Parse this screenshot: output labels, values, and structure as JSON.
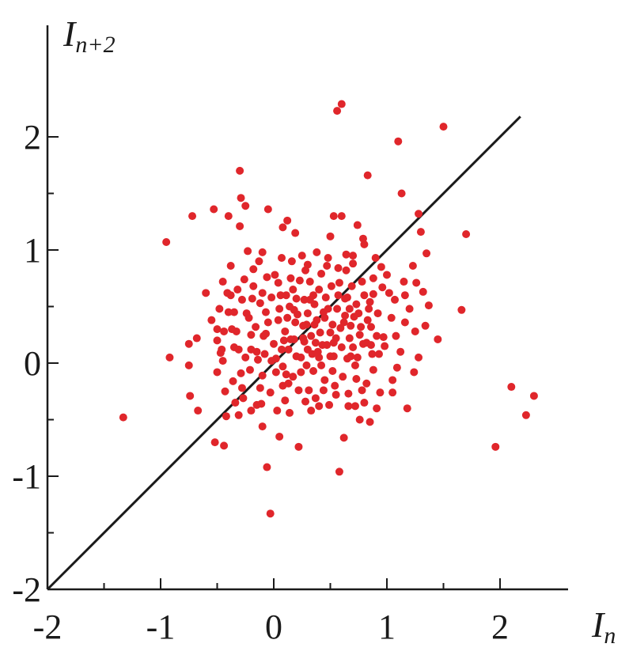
{
  "chart_data": {
    "type": "scatter",
    "title": "",
    "xlabel": {
      "main": "I",
      "sub": "n"
    },
    "ylabel": {
      "main": "I",
      "sub": "n+2"
    },
    "xlim": [
      -2,
      2.3
    ],
    "ylim": [
      -2,
      2.4
    ],
    "xticks": [
      -2,
      -1,
      0,
      1,
      2
    ],
    "yticks": [
      -2,
      -1,
      0,
      1,
      2
    ],
    "xtick_labels": [
      "-2",
      "-1",
      "0",
      "1",
      "2"
    ],
    "ytick_labels": [
      "-2",
      "-1",
      "0",
      "1",
      "2"
    ],
    "grid": false,
    "point_color": "#e0262b",
    "line_color": "#1a1a1a",
    "reference_line": {
      "x": [
        -2,
        2.18
      ],
      "y": [
        -2,
        2.18
      ]
    },
    "points": [
      [
        -1.33,
        -0.48
      ],
      [
        -0.95,
        1.07
      ],
      [
        -0.92,
        0.05
      ],
      [
        -0.72,
        1.3
      ],
      [
        -0.75,
        0.17
      ],
      [
        -0.75,
        -0.02
      ],
      [
        -0.74,
        -0.29
      ],
      [
        -0.68,
        0.22
      ],
      [
        -0.67,
        -0.42
      ],
      [
        -0.6,
        0.62
      ],
      [
        -0.55,
        0.38
      ],
      [
        -0.53,
        1.36
      ],
      [
        -0.5,
        0.2
      ],
      [
        -0.52,
        -0.7
      ],
      [
        -0.44,
        -0.73
      ],
      [
        -0.4,
        1.3
      ],
      [
        -0.45,
        0.02
      ],
      [
        -0.45,
        0.72
      ],
      [
        -0.38,
        0.6
      ],
      [
        -0.3,
        1.7
      ],
      [
        -0.29,
        1.46
      ],
      [
        -0.25,
        1.39
      ],
      [
        -0.3,
        1.21
      ],
      [
        -0.23,
        0.99
      ],
      [
        -0.32,
        0.65
      ],
      [
        -0.35,
        0.14
      ],
      [
        -0.29,
        -0.09
      ],
      [
        -0.42,
        -0.47
      ],
      [
        -0.28,
        -0.22
      ],
      [
        -0.2,
        -0.42
      ],
      [
        -0.18,
        0.83
      ],
      [
        -0.12,
        0.53
      ],
      [
        -0.07,
        0.26
      ],
      [
        -0.1,
        -0.11
      ],
      [
        -0.15,
        -0.37
      ],
      [
        -0.1,
        -0.56
      ],
      [
        -0.06,
        -0.92
      ],
      [
        -0.03,
        -1.33
      ],
      [
        -0.05,
        1.36
      ],
      [
        0.02,
        0.04
      ],
      [
        0.04,
        0.71
      ],
      [
        0.07,
        0.93
      ],
      [
        0.08,
        1.2
      ],
      [
        0.12,
        1.26
      ],
      [
        0.05,
        -0.65
      ],
      [
        0.1,
        -0.33
      ],
      [
        0.13,
        -0.18
      ],
      [
        0.15,
        0.21
      ],
      [
        0.18,
        0.47
      ],
      [
        0.19,
        1.15
      ],
      [
        0.22,
        -0.74
      ],
      [
        0.26,
        0.33
      ],
      [
        0.28,
        0.82
      ],
      [
        0.3,
        0.12
      ],
      [
        0.33,
        -0.42
      ],
      [
        0.35,
        0.6
      ],
      [
        0.38,
        0.98
      ],
      [
        0.4,
        0.05
      ],
      [
        0.42,
        0.79
      ],
      [
        0.45,
        -0.15
      ],
      [
        0.48,
        0.48
      ],
      [
        0.5,
        1.12
      ],
      [
        0.53,
        1.3
      ],
      [
        0.55,
        0.22
      ],
      [
        0.56,
        2.23
      ],
      [
        0.6,
        2.29
      ],
      [
        0.58,
        -0.96
      ],
      [
        0.6,
        1.3
      ],
      [
        0.62,
        -0.66
      ],
      [
        0.65,
        0.58
      ],
      [
        0.68,
        0.33
      ],
      [
        0.7,
        0.88
      ],
      [
        0.72,
        -0.02
      ],
      [
        0.74,
        1.22
      ],
      [
        0.76,
        -0.5
      ],
      [
        0.78,
        0.72
      ],
      [
        0.8,
        1.05
      ],
      [
        0.82,
        0.18
      ],
      [
        0.83,
        1.66
      ],
      [
        0.85,
        -0.52
      ],
      [
        0.88,
        0.61
      ],
      [
        0.9,
        0.93
      ],
      [
        0.93,
        0.08
      ],
      [
        0.95,
        0.85
      ],
      [
        0.97,
        0.23
      ],
      [
        1.02,
        0.62
      ],
      [
        1.05,
        -0.15
      ],
      [
        1.08,
        0.24
      ],
      [
        1.1,
        1.96
      ],
      [
        1.13,
        1.5
      ],
      [
        1.15,
        0.72
      ],
      [
        1.18,
        -0.4
      ],
      [
        1.2,
        0.48
      ],
      [
        1.23,
        0.86
      ],
      [
        1.25,
        0.28
      ],
      [
        1.28,
        1.32
      ],
      [
        1.3,
        1.16
      ],
      [
        1.32,
        0.63
      ],
      [
        1.35,
        0.97
      ],
      [
        1.37,
        0.51
      ],
      [
        1.45,
        0.21
      ],
      [
        1.5,
        2.09
      ],
      [
        1.66,
        0.47
      ],
      [
        1.7,
        1.14
      ],
      [
        1.96,
        -0.74
      ],
      [
        2.1,
        -0.21
      ],
      [
        2.23,
        -0.46
      ],
      [
        2.3,
        -0.29
      ],
      [
        -0.4,
        0.45
      ],
      [
        -0.37,
        0.3
      ],
      [
        -0.22,
        0.4
      ],
      [
        -0.15,
        0.1
      ],
      [
        -0.2,
        0.25
      ],
      [
        -0.1,
        0.62
      ],
      [
        -0.05,
        0.36
      ],
      [
        0.0,
        0.17
      ],
      [
        0.08,
        -0.03
      ],
      [
        0.12,
        0.4
      ],
      [
        0.17,
        0.65
      ],
      [
        0.2,
        0.06
      ],
      [
        0.22,
        -0.24
      ],
      [
        0.27,
        0.56
      ],
      [
        0.3,
        0.44
      ],
      [
        0.33,
        0.24
      ],
      [
        0.35,
        -0.07
      ],
      [
        0.38,
        0.38
      ],
      [
        0.4,
        0.65
      ],
      [
        0.43,
        0.16
      ],
      [
        0.47,
        0.86
      ],
      [
        0.5,
        0.06
      ],
      [
        0.52,
        0.34
      ],
      [
        0.57,
        0.6
      ],
      [
        0.6,
        0.14
      ],
      [
        0.63,
        0.42
      ],
      [
        0.66,
        -0.27
      ],
      [
        0.7,
        0.14
      ],
      [
        0.75,
        0.44
      ],
      [
        0.78,
        -0.24
      ],
      [
        0.82,
        -0.18
      ],
      [
        0.86,
        0.32
      ],
      [
        0.88,
        -0.06
      ],
      [
        0.92,
        0.44
      ],
      [
        -0.28,
        0.56
      ],
      [
        -0.25,
        0.05
      ],
      [
        -0.12,
        -0.22
      ],
      [
        -0.02,
        0.02
      ],
      [
        0.05,
        0.48
      ],
      [
        0.14,
        -0.44
      ],
      [
        0.25,
        0.95
      ],
      [
        0.37,
        -0.31
      ],
      [
        0.45,
        0.4
      ],
      [
        0.55,
        -0.28
      ],
      [
        0.64,
        0.82
      ],
      [
        0.74,
        0.05
      ],
      [
        0.96,
        0.67
      ],
      [
        1.04,
        0.4
      ],
      [
        1.12,
        0.1
      ],
      [
        1.26,
        0.71
      ],
      [
        1.34,
        0.33
      ],
      [
        -0.47,
        0.09
      ],
      [
        -0.34,
        -0.35
      ],
      [
        -0.18,
        0.68
      ],
      [
        -0.08,
        0.08
      ],
      [
        0.03,
        -0.42
      ],
      [
        0.1,
        0.28
      ],
      [
        0.16,
        0.9
      ],
      [
        0.24,
        -0.08
      ],
      [
        0.32,
        0.72
      ],
      [
        0.41,
        0.27
      ],
      [
        0.49,
        -0.37
      ],
      [
        0.58,
        0.71
      ],
      [
        0.67,
        0.22
      ],
      [
        0.72,
        -0.38
      ],
      [
        0.84,
        0.48
      ],
      [
        0.94,
        -0.26
      ],
      [
        1.0,
        0.78
      ],
      [
        1.16,
        0.36
      ],
      [
        -0.33,
        0.28
      ],
      [
        -0.21,
        -0.06
      ],
      [
        -0.07,
        0.45
      ],
      [
        0.06,
        0.6
      ],
      [
        0.13,
        0.12
      ],
      [
        0.23,
        0.73
      ],
      [
        0.29,
        -0.02
      ],
      [
        0.36,
        0.52
      ],
      [
        0.44,
        -0.24
      ],
      [
        0.53,
        0.18
      ],
      [
        0.61,
        -0.12
      ],
      [
        0.69,
        0.68
      ],
      [
        0.77,
        0.32
      ],
      [
        0.87,
        0.08
      ],
      [
        -0.44,
        0.28
      ],
      [
        -0.16,
        0.32
      ],
      [
        0.01,
        0.78
      ],
      [
        0.19,
        0.36
      ],
      [
        0.31,
        -0.24
      ],
      [
        0.46,
        0.58
      ],
      [
        0.59,
        0.31
      ],
      [
        0.73,
        0.52
      ],
      [
        -0.5,
        -0.08
      ],
      [
        -0.36,
        -0.16
      ],
      [
        -0.26,
        0.74
      ],
      [
        -0.03,
        -0.26
      ],
      [
        0.09,
        0.2
      ],
      [
        0.27,
        0.19
      ],
      [
        0.42,
        -0.02
      ],
      [
        0.56,
        0.48
      ],
      [
        0.71,
        0.41
      ],
      [
        0.8,
        0.6
      ],
      [
        -0.41,
        0.62
      ],
      [
        -0.13,
        0.9
      ],
      [
        0.04,
        0.38
      ],
      [
        0.17,
        -0.12
      ],
      [
        0.34,
        0.08
      ],
      [
        0.51,
        0.68
      ],
      [
        0.65,
        0.04
      ],
      [
        0.79,
        0.17
      ],
      [
        0.91,
        0.24
      ],
      [
        1.07,
        0.56
      ],
      [
        -0.24,
        0.44
      ],
      [
        -0.02,
        0.58
      ],
      [
        0.14,
        0.5
      ],
      [
        0.26,
        0.22
      ],
      [
        0.39,
        0.1
      ],
      [
        0.54,
        -0.2
      ],
      [
        0.68,
        0.06
      ],
      [
        0.83,
        0.38
      ],
      [
        -0.48,
        0.48
      ],
      [
        -0.31,
        0.12
      ],
      [
        -0.14,
        0.03
      ],
      [
        0.07,
        0.12
      ],
      [
        0.21,
        0.43
      ],
      [
        0.36,
        0.34
      ],
      [
        0.5,
        0.27
      ],
      [
        0.63,
        0.57
      ],
      [
        0.76,
        0.25
      ],
      [
        0.98,
        0.15
      ],
      [
        -0.46,
        0.12
      ],
      [
        -0.31,
        -0.46
      ],
      [
        -0.19,
        0.57
      ],
      [
        -0.09,
        0.24
      ],
      [
        0.11,
        0.6
      ],
      [
        0.18,
        0.21
      ],
      [
        0.29,
        0.34
      ],
      [
        0.44,
        0.45
      ],
      [
        0.52,
        -0.07
      ],
      [
        0.62,
        0.36
      ],
      [
        0.73,
        -0.14
      ],
      [
        0.86,
        0.16
      ],
      [
        1.24,
        -0.08
      ],
      [
        -0.38,
        0.86
      ],
      [
        -0.1,
        0.98
      ],
      [
        0.02,
        -0.08
      ],
      [
        0.2,
        0.57
      ],
      [
        0.32,
        0.56
      ],
      [
        0.47,
        0.16
      ],
      [
        0.57,
        0.84
      ],
      [
        0.7,
        0.95
      ],
      [
        1.09,
        -0.04
      ],
      [
        1.28,
        0.05
      ],
      [
        -0.27,
        -0.31
      ],
      [
        -0.11,
        -0.36
      ],
      [
        0.08,
        -0.2
      ],
      [
        0.28,
        -0.34
      ],
      [
        0.4,
        -0.38
      ],
      [
        0.66,
        -0.38
      ],
      [
        0.8,
        -0.35
      ],
      [
        0.91,
        -0.4
      ],
      [
        1.05,
        -0.26
      ],
      [
        -0.5,
        0.3
      ],
      [
        -0.43,
        -0.25
      ],
      [
        -0.06,
        0.76
      ],
      [
        0.15,
        0.75
      ],
      [
        0.3,
        0.87
      ],
      [
        0.48,
        0.93
      ],
      [
        0.64,
        0.96
      ],
      [
        0.79,
        1.1
      ],
      [
        0.88,
        0.75
      ],
      [
        -0.35,
        0.45
      ],
      [
        -0.2,
        0.12
      ],
      [
        0.11,
        -0.1
      ],
      [
        0.24,
        0.05
      ],
      [
        0.37,
        0.18
      ],
      [
        0.53,
        0.06
      ],
      [
        0.67,
        0.48
      ],
      [
        0.85,
        0.54
      ],
      [
        1.16,
        0.6
      ]
    ]
  }
}
